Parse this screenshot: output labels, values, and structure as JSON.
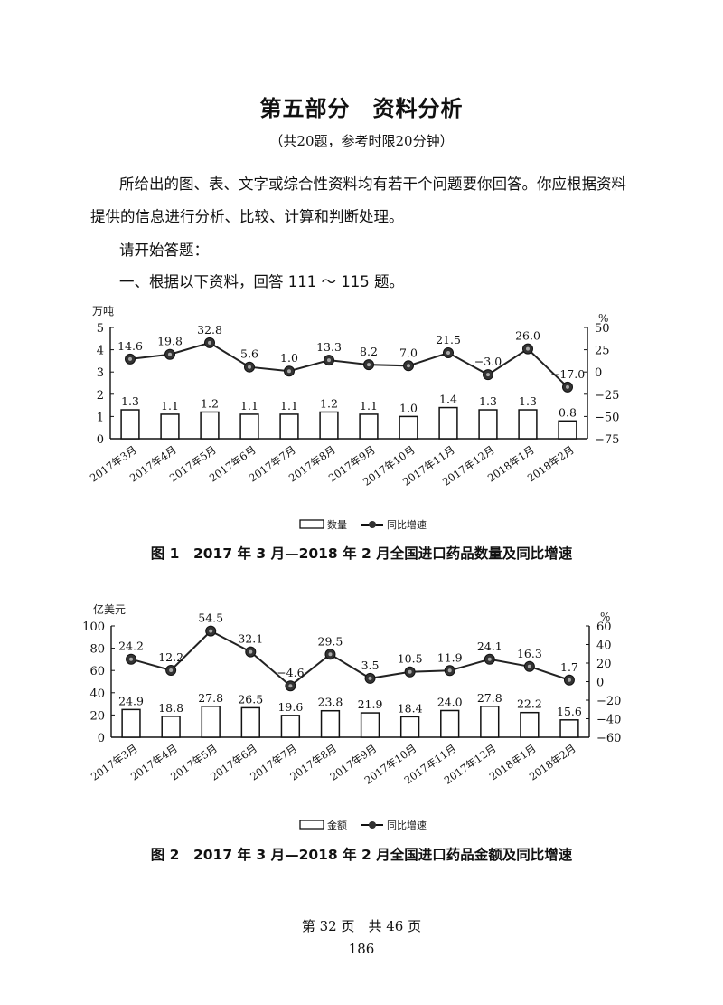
{
  "header": {
    "title": "第五部分　资料分析",
    "subtitle": "（共20题，参考时限20分钟）"
  },
  "intro": {
    "instructions": "所给出的图、表、文字或综合性资料均有若干个问题要你回答。你应根据资料提供的信息进行分析、比较、计算和判断处理。",
    "start": "请开始答题：",
    "section": "一、根据以下资料，回答 111 ～ 115 题。"
  },
  "chart_data": [
    {
      "type": "bar+line",
      "title": "图 1　2017 年 3 月—2018 年 2 月全国进口药品数量及同比增速",
      "categories": [
        "2017年3月",
        "2017年4月",
        "2017年5月",
        "2017年6月",
        "2017年7月",
        "2017年8月",
        "2017年9月",
        "2017年10月",
        "2017年11月",
        "2017年12月",
        "2018年1月",
        "2018年2月"
      ],
      "series": [
        {
          "name": "数量",
          "type": "bar",
          "axis": "left",
          "values": [
            1.3,
            1.1,
            1.2,
            1.1,
            1.1,
            1.2,
            1.1,
            1.0,
            1.4,
            1.3,
            1.3,
            0.8
          ]
        },
        {
          "name": "同比增速",
          "type": "line",
          "axis": "right",
          "values": [
            14.6,
            19.8,
            32.8,
            5.6,
            1.0,
            13.3,
            8.2,
            7.0,
            21.5,
            -3.0,
            26.0,
            -17.0
          ]
        }
      ],
      "ylabel": "万吨",
      "y2label": "%",
      "ylim": [
        0,
        5
      ],
      "yticks": [
        0,
        1,
        2,
        3,
        4,
        5
      ],
      "y2lim": [
        -75,
        50
      ],
      "y2ticks": [
        50,
        25,
        0,
        -25,
        -50,
        -75
      ],
      "legend": [
        "数量",
        "同比增速"
      ],
      "legend_position": "bottom"
    },
    {
      "type": "bar+line",
      "title": "图 2　2017 年 3 月—2018 年 2 月全国进口药品金额及同比增速",
      "categories": [
        "2017年3月",
        "2017年4月",
        "2017年5月",
        "2017年6月",
        "2017年7月",
        "2017年8月",
        "2017年9月",
        "2017年10月",
        "2017年11月",
        "2017年12月",
        "2018年1月",
        "2018年2月"
      ],
      "series": [
        {
          "name": "金额",
          "type": "bar",
          "axis": "left",
          "values": [
            24.9,
            18.8,
            27.8,
            26.5,
            19.6,
            23.8,
            21.9,
            18.4,
            24.0,
            27.8,
            22.2,
            15.6
          ]
        },
        {
          "name": "同比增速",
          "type": "line",
          "axis": "right",
          "values": [
            24.2,
            12.2,
            54.5,
            32.1,
            -4.6,
            29.5,
            3.5,
            10.5,
            11.9,
            24.1,
            16.3,
            1.7
          ]
        }
      ],
      "ylabel": "亿美元",
      "y2label": "%",
      "ylim": [
        0,
        100
      ],
      "yticks": [
        0,
        20,
        40,
        60,
        80,
        100
      ],
      "y2lim": [
        -60,
        60
      ],
      "y2ticks": [
        60,
        40,
        20,
        0,
        -20,
        -40,
        -60
      ],
      "legend": [
        "金额",
        "同比增速"
      ],
      "legend_position": "bottom"
    }
  ],
  "footer": {
    "page_info": "第 32 页　共 46 页",
    "page_number": "186"
  }
}
